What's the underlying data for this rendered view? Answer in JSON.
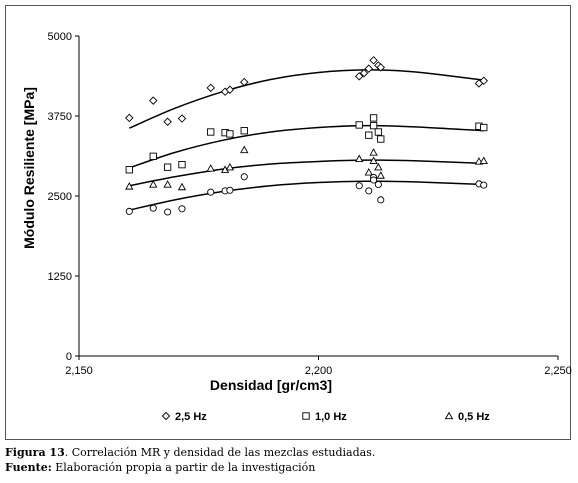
{
  "chart_data": {
    "type": "scatter",
    "title": "",
    "xlabel": "Densidad [gr/cm3]",
    "ylabel": "Módulo Resiliente [MPa]",
    "xlim": [
      2.15,
      2.25
    ],
    "ylim": [
      0,
      5000
    ],
    "x_ticks": [
      2.15,
      2.2,
      2.25
    ],
    "x_tick_labels": [
      "2,150",
      "2,200",
      "2,250"
    ],
    "y_ticks": [
      0,
      1250,
      2500,
      3750,
      5000
    ],
    "y_tick_labels": [
      "0",
      "1250",
      "2500",
      "3750",
      "5000"
    ],
    "grid": false,
    "legend_position": "bottom",
    "trendline": "polynomial",
    "series": [
      {
        "name": "2,5 Hz",
        "marker": "diamond",
        "points": [
          [
            2.1605,
            3720
          ],
          [
            2.1655,
            3990
          ],
          [
            2.1685,
            3660
          ],
          [
            2.1715,
            3710
          ],
          [
            2.1775,
            4190
          ],
          [
            2.1805,
            4130
          ],
          [
            2.1815,
            4160
          ],
          [
            2.1845,
            4280
          ],
          [
            2.2085,
            4370
          ],
          [
            2.2095,
            4420
          ],
          [
            2.2105,
            4490
          ],
          [
            2.2115,
            4620
          ],
          [
            2.2125,
            4540
          ],
          [
            2.213,
            4510
          ],
          [
            2.2335,
            4260
          ],
          [
            2.2345,
            4300
          ]
        ],
        "fit": [
          [
            2.1605,
            3560
          ],
          [
            2.17,
            3870
          ],
          [
            2.18,
            4130
          ],
          [
            2.19,
            4320
          ],
          [
            2.2,
            4430
          ],
          [
            2.21,
            4470
          ],
          [
            2.22,
            4440
          ],
          [
            2.2345,
            4310
          ]
        ]
      },
      {
        "name": "1,0 Hz",
        "marker": "square",
        "points": [
          [
            2.1605,
            2910
          ],
          [
            2.1655,
            3120
          ],
          [
            2.1685,
            2950
          ],
          [
            2.1715,
            2990
          ],
          [
            2.1775,
            3500
          ],
          [
            2.1805,
            3490
          ],
          [
            2.1815,
            3470
          ],
          [
            2.1845,
            3520
          ],
          [
            2.2085,
            3610
          ],
          [
            2.2105,
            3450
          ],
          [
            2.2115,
            3720
          ],
          [
            2.2115,
            3600
          ],
          [
            2.2125,
            3500
          ],
          [
            2.213,
            3390
          ],
          [
            2.2335,
            3590
          ],
          [
            2.2345,
            3570
          ]
        ],
        "fit": [
          [
            2.1605,
            2940
          ],
          [
            2.17,
            3180
          ],
          [
            2.18,
            3370
          ],
          [
            2.19,
            3500
          ],
          [
            2.2,
            3570
          ],
          [
            2.21,
            3600
          ],
          [
            2.22,
            3580
          ],
          [
            2.2345,
            3520
          ]
        ]
      },
      {
        "name": "0,5 Hz",
        "marker": "triangle",
        "points": [
          [
            2.1605,
            2650
          ],
          [
            2.1655,
            2680
          ],
          [
            2.1685,
            2680
          ],
          [
            2.1715,
            2640
          ],
          [
            2.1775,
            2930
          ],
          [
            2.1805,
            2910
          ],
          [
            2.1815,
            2950
          ],
          [
            2.1845,
            3220
          ],
          [
            2.2085,
            3080
          ],
          [
            2.2105,
            2870
          ],
          [
            2.2115,
            3180
          ],
          [
            2.2115,
            3050
          ],
          [
            2.2125,
            2950
          ],
          [
            2.213,
            2820
          ],
          [
            2.2335,
            3040
          ],
          [
            2.2345,
            3050
          ]
        ],
        "fit": [
          [
            2.1605,
            2660
          ],
          [
            2.17,
            2800
          ],
          [
            2.18,
            2920
          ],
          [
            2.19,
            3000
          ],
          [
            2.2,
            3040
          ],
          [
            2.21,
            3060
          ],
          [
            2.22,
            3050
          ],
          [
            2.2345,
            3010
          ]
        ]
      },
      {
        "name": "",
        "marker": "circle",
        "points": [
          [
            2.1605,
            2260
          ],
          [
            2.1655,
            2310
          ],
          [
            2.1685,
            2250
          ],
          [
            2.1715,
            2300
          ],
          [
            2.1775,
            2560
          ],
          [
            2.1805,
            2580
          ],
          [
            2.1815,
            2590
          ],
          [
            2.1845,
            2800
          ],
          [
            2.2085,
            2660
          ],
          [
            2.2105,
            2580
          ],
          [
            2.2115,
            2790
          ],
          [
            2.2115,
            2750
          ],
          [
            2.2125,
            2680
          ],
          [
            2.213,
            2440
          ],
          [
            2.2335,
            2690
          ],
          [
            2.2345,
            2670
          ]
        ],
        "fit": [
          [
            2.1605,
            2280
          ],
          [
            2.17,
            2440
          ],
          [
            2.18,
            2570
          ],
          [
            2.19,
            2660
          ],
          [
            2.2,
            2710
          ],
          [
            2.21,
            2730
          ],
          [
            2.22,
            2720
          ],
          [
            2.2345,
            2680
          ]
        ]
      }
    ]
  },
  "caption": {
    "figure_label": "Figura 13",
    "figure_text": ". Correlación MR y densidad de las mezclas estudiadas.",
    "source_label": "Fuente:",
    "source_text": " Elaboración propia a partir de la investigación"
  }
}
